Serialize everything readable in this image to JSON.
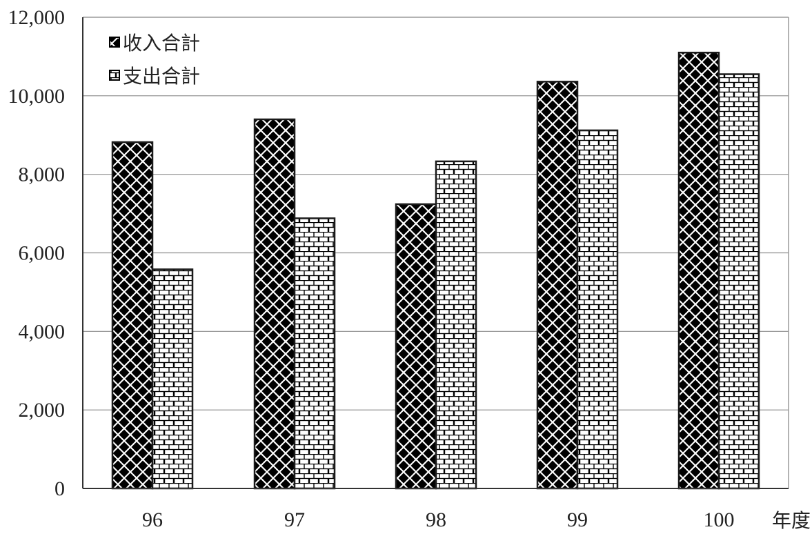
{
  "chart_data": {
    "type": "bar",
    "title": "",
    "xlabel": "年度",
    "ylabel": "",
    "categories": [
      "96",
      "97",
      "98",
      "99",
      "100"
    ],
    "series": [
      {
        "name": "收入合計",
        "values": [
          8820,
          9400,
          7240,
          10360,
          11100
        ],
        "color": "#000000",
        "pattern": "diamond-checker"
      },
      {
        "name": "支出合計",
        "values": [
          5580,
          6880,
          8330,
          9120,
          10550
        ],
        "color": "#000000",
        "pattern": "brick"
      }
    ],
    "ylim": [
      0,
      12000
    ],
    "yticks": [
      0,
      2000,
      4000,
      6000,
      8000,
      10000,
      12000
    ],
    "ytick_labels": [
      "0",
      "2,000",
      "4,000",
      "6,000",
      "8,000",
      "10,000",
      "12,000"
    ],
    "grid": true,
    "legend_position": "top-left"
  }
}
